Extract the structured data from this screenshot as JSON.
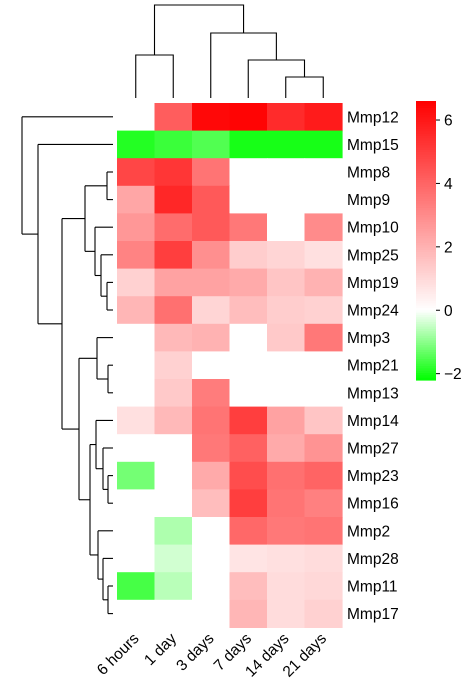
{
  "chart_data": {
    "type": "heatmap",
    "columns": [
      "6 hours",
      "1 day",
      "3 days",
      "7 days",
      "14 days",
      "21 days"
    ],
    "rows": [
      "Mmp12",
      "Mmp15",
      "Mmp8",
      "Mmp9",
      "Mmp10",
      "Mmp25",
      "Mmp19",
      "Mmp24",
      "Mmp3",
      "Mmp21",
      "Mmp13",
      "Mmp14",
      "Mmp27",
      "Mmp23",
      "Mmp16",
      "Mmp2",
      "Mmp28",
      "Mmp11",
      "Mmp17"
    ],
    "values": [
      [
        0.0,
        4.2,
        6.4,
        6.5,
        5.5,
        5.9
      ],
      [
        -1.9,
        -1.7,
        -1.5,
        -2.0,
        -2.0,
        -2.0
      ],
      [
        4.8,
        5.2,
        3.6,
        0.0,
        0.0,
        0.0
      ],
      [
        2.3,
        5.6,
        4.3,
        0.0,
        0.0,
        0.0
      ],
      [
        2.7,
        3.8,
        4.3,
        3.5,
        0.0,
        3.0
      ],
      [
        3.2,
        5.0,
        2.9,
        1.3,
        1.1,
        0.8
      ],
      [
        1.2,
        2.4,
        2.4,
        2.2,
        1.5,
        2.0
      ],
      [
        1.9,
        3.7,
        1.1,
        1.7,
        1.3,
        1.2
      ],
      [
        0.0,
        1.8,
        2.0,
        0.0,
        1.4,
        3.5
      ],
      [
        0.0,
        1.2,
        0.0,
        0.0,
        0.0,
        0.0
      ],
      [
        0.0,
        1.4,
        3.4,
        0.0,
        0.0,
        0.0
      ],
      [
        0.8,
        1.8,
        3.6,
        5.0,
        2.4,
        1.5
      ],
      [
        0.0,
        0.0,
        3.5,
        4.1,
        2.2,
        2.8
      ],
      [
        -1.2,
        0.0,
        2.2,
        4.6,
        3.7,
        4.0
      ],
      [
        0.0,
        0.0,
        1.7,
        5.0,
        3.6,
        3.3
      ],
      [
        0.0,
        -0.7,
        0.0,
        3.9,
        3.5,
        3.6
      ],
      [
        0.0,
        -0.4,
        0.0,
        0.7,
        0.8,
        0.9
      ],
      [
        -1.6,
        -0.6,
        0.0,
        1.7,
        0.9,
        1.0
      ],
      [
        0.0,
        0.0,
        0.0,
        1.9,
        0.9,
        1.2
      ]
    ],
    "color_scale": {
      "min": -2.2,
      "mid": 0,
      "max": 6.6,
      "low_color": "#00ff00",
      "mid_color": "#ffffff",
      "high_color": "#ff0000",
      "ticks": [
        "6",
        "4",
        "2",
        "0",
        "−2"
      ],
      "tick_values": [
        6,
        4,
        2,
        0,
        -2
      ]
    },
    "legend": "right",
    "row_dendrogram": true,
    "column_dendrogram": true
  }
}
